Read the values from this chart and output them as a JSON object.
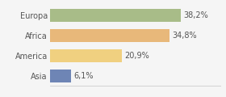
{
  "categories": [
    "Asia",
    "America",
    "Africa",
    "Europa"
  ],
  "values": [
    6.1,
    20.9,
    34.8,
    38.2
  ],
  "labels": [
    "6,1%",
    "20,9%",
    "34,8%",
    "38,2%"
  ],
  "bar_colors": [
    "#6e85b5",
    "#f0d080",
    "#e8b87a",
    "#a8bc88"
  ],
  "background_color": "#f5f5f5",
  "xlim": [
    0,
    50
  ],
  "bar_height": 0.65,
  "label_fontsize": 7,
  "category_fontsize": 7,
  "text_color": "#555555"
}
